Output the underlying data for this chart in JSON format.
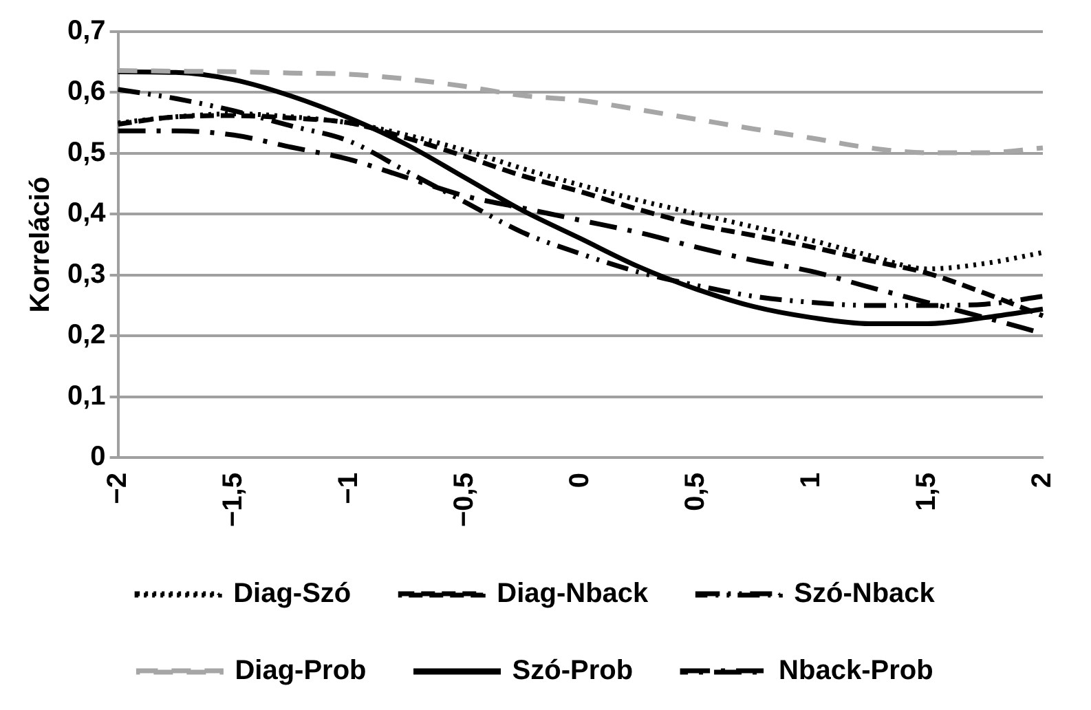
{
  "chart_data": {
    "type": "line",
    "ylabel": "Korreláció",
    "categories": [
      "−2",
      null,
      "−1,5",
      null,
      "−1",
      null,
      "−0,5",
      null,
      "0",
      null,
      "0,5",
      null,
      "1",
      null,
      "1,5",
      null,
      "2"
    ],
    "series": [
      {
        "name": "Diag-Szó",
        "color": "#000000",
        "line_style": "dotted",
        "values": [
          0.55,
          0.56,
          0.565,
          0.56,
          0.55,
          0.53,
          0.505,
          0.475,
          0.448,
          0.423,
          0.401,
          0.379,
          0.357,
          0.332,
          0.31,
          0.319,
          0.337
        ]
      },
      {
        "name": "Diag-Nback",
        "color": "#000000",
        "line_style": "dashed",
        "values": [
          0.548,
          0.56,
          0.562,
          0.558,
          0.55,
          0.525,
          0.495,
          0.463,
          0.437,
          0.408,
          0.383,
          0.365,
          0.346,
          0.324,
          0.303,
          0.27,
          0.233
        ]
      },
      {
        "name": "Szó-Nback",
        "color": "#000000",
        "line_style": "dashed",
        "values": [
          0.605,
          0.59,
          0.57,
          0.545,
          0.52,
          0.47,
          0.42,
          0.37,
          0.335,
          0.305,
          0.283,
          0.265,
          0.255,
          0.25,
          0.25,
          0.252,
          0.265
        ]
      },
      {
        "name": "Diag-Prob",
        "color": "#a6a6a6",
        "line_style": "dashed",
        "values": [
          0.636,
          0.635,
          0.634,
          0.632,
          0.63,
          0.622,
          0.61,
          0.595,
          0.587,
          0.572,
          0.556,
          0.54,
          0.525,
          0.509,
          0.501,
          0.501,
          0.509
        ]
      },
      {
        "name": "Szó-Prob",
        "color": "#000000",
        "line_style": "solid",
        "values": [
          0.634,
          0.633,
          0.621,
          0.594,
          0.558,
          0.514,
          0.46,
          0.406,
          0.36,
          0.314,
          0.277,
          0.248,
          0.23,
          0.22,
          0.22,
          0.23,
          0.244
        ]
      },
      {
        "name": "Nback-Prob",
        "color": "#000000",
        "line_style": "dashed",
        "values": [
          0.537,
          0.537,
          0.53,
          0.51,
          0.49,
          0.46,
          0.43,
          0.41,
          0.39,
          0.37,
          0.346,
          0.324,
          0.306,
          0.28,
          0.255,
          0.23,
          0.204
        ]
      }
    ],
    "ylim": [
      0,
      0.7
    ],
    "yticks": [
      {
        "value": 0,
        "label": "0"
      },
      {
        "value": 0.1,
        "label": "0,1"
      },
      {
        "value": 0.2,
        "label": "0,2"
      },
      {
        "value": 0.3,
        "label": "0,3"
      },
      {
        "value": 0.4,
        "label": "0,4"
      },
      {
        "value": 0.5,
        "label": "0,5"
      },
      {
        "value": 0.6,
        "label": "0,6"
      },
      {
        "value": 0.7,
        "label": "0,7"
      }
    ],
    "grid": "y",
    "legend": "bottom",
    "marker": "none"
  }
}
